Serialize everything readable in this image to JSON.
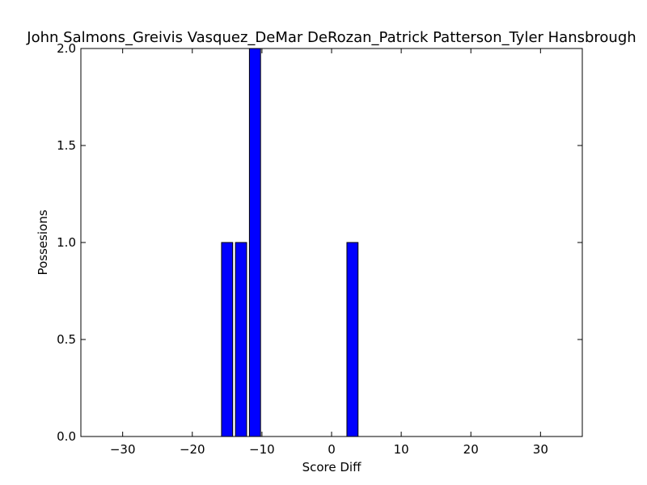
{
  "chart_data": {
    "type": "bar",
    "title": "John Salmons_Greivis Vasquez_DeMar DeRozan_Patrick Patterson_Tyler Hansbrough",
    "xlabel": "Score Diff",
    "ylabel": "Possesions",
    "xlim": [
      -36,
      36
    ],
    "ylim": [
      0,
      2.0
    ],
    "bar_width": 2,
    "x": [
      -36,
      -34,
      -32,
      -30,
      -28,
      -26,
      -24,
      -22,
      -20,
      -18,
      -16,
      -14,
      -12,
      -10,
      -8,
      -6,
      -4,
      -2,
      0,
      2,
      4,
      6,
      8,
      10,
      12,
      14,
      16,
      18,
      20,
      22,
      24,
      26,
      28,
      30,
      32,
      34
    ],
    "values": [
      0,
      0,
      0,
      0,
      0,
      0,
      0,
      0,
      0,
      0,
      1,
      1,
      2,
      0,
      0,
      0,
      0,
      0,
      0,
      1,
      0,
      0,
      0,
      0,
      0,
      0,
      0,
      0,
      0,
      0,
      0,
      0,
      0,
      0,
      0,
      0
    ],
    "xticks": [
      "−30",
      "−20",
      "−10",
      "0",
      "10",
      "20",
      "30"
    ],
    "xtick_values": [
      -30,
      -20,
      -10,
      0,
      10,
      20,
      30
    ],
    "yticks": [
      "0.0",
      "0.5",
      "1.0",
      "1.5",
      "2.0"
    ],
    "ytick_values": [
      0,
      0.5,
      1.0,
      1.5,
      2.0
    ],
    "grid": false,
    "bar_color": "#0000ff",
    "edge_color": "#000000"
  }
}
